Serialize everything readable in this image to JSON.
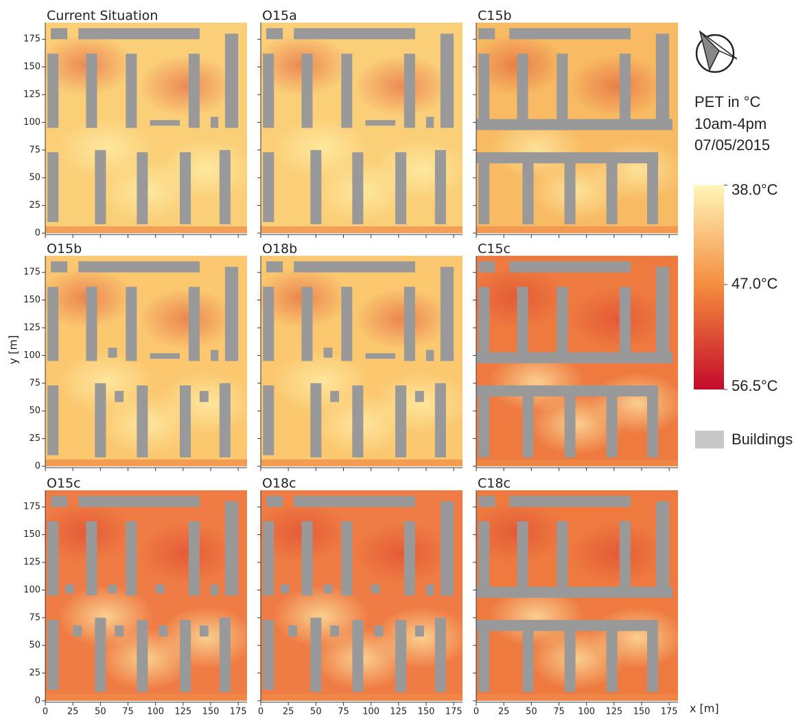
{
  "chart_data": [
    {
      "type": "heatmap",
      "title": "Current Situation",
      "color": "#fbcf78",
      "xlim": [
        0,
        183
      ],
      "ylim": [
        0,
        190
      ],
      "xticks": [
        0,
        25,
        50,
        75,
        100,
        125,
        150,
        175
      ],
      "yticks": [
        0,
        25,
        50,
        75,
        100,
        125,
        150,
        175
      ]
    },
    {
      "type": "heatmap",
      "title": "O15a",
      "color": "#fbcf78",
      "xlim": [
        0,
        183
      ],
      "ylim": [
        0,
        190
      ],
      "xticks": [
        0,
        25,
        50,
        75,
        100,
        125,
        150,
        175
      ],
      "yticks": [
        0,
        25,
        50,
        75,
        100,
        125,
        150,
        175
      ]
    },
    {
      "type": "heatmap",
      "title": "C15b",
      "color": "#f8ba62",
      "xlim": [
        0,
        183
      ],
      "ylim": [
        0,
        190
      ],
      "xticks": [
        0,
        25,
        50,
        75,
        100,
        125,
        150,
        175
      ],
      "yticks": [
        0,
        25,
        50,
        75,
        100,
        125,
        150,
        175
      ]
    },
    {
      "type": "heatmap",
      "title": "O15b",
      "color": "#fbc870",
      "xlim": [
        0,
        183
      ],
      "ylim": [
        0,
        190
      ],
      "xticks": [
        0,
        25,
        50,
        75,
        100,
        125,
        150,
        175
      ],
      "yticks": [
        0,
        25,
        50,
        75,
        100,
        125,
        150,
        175
      ]
    },
    {
      "type": "heatmap",
      "title": "O18b",
      "color": "#fbc870",
      "xlim": [
        0,
        183
      ],
      "ylim": [
        0,
        190
      ],
      "xticks": [
        0,
        25,
        50,
        75,
        100,
        125,
        150,
        175
      ],
      "yticks": [
        0,
        25,
        50,
        75,
        100,
        125,
        150,
        175
      ]
    },
    {
      "type": "heatmap",
      "title": "C15c",
      "color": "#ee7a40",
      "xlim": [
        0,
        183
      ],
      "ylim": [
        0,
        190
      ],
      "xticks": [
        0,
        25,
        50,
        75,
        100,
        125,
        150,
        175
      ],
      "yticks": [
        0,
        25,
        50,
        75,
        100,
        125,
        150,
        175
      ]
    },
    {
      "type": "heatmap",
      "title": "O15c",
      "color": "#ef7c44",
      "xlim": [
        0,
        183
      ],
      "ylim": [
        0,
        190
      ],
      "xticks": [
        0,
        25,
        50,
        75,
        100,
        125,
        150,
        175
      ],
      "yticks": [
        0,
        25,
        50,
        75,
        100,
        125,
        150,
        175
      ]
    },
    {
      "type": "heatmap",
      "title": "O18c",
      "color": "#ef7c44",
      "xlim": [
        0,
        183
      ],
      "ylim": [
        0,
        190
      ],
      "xticks": [
        0,
        25,
        50,
        75,
        100,
        125,
        150,
        175
      ],
      "yticks": [
        0,
        25,
        50,
        75,
        100,
        125,
        150,
        175
      ]
    },
    {
      "type": "heatmap",
      "title": "C18c",
      "color": "#ee7a40",
      "xlim": [
        0,
        183
      ],
      "ylim": [
        0,
        190
      ],
      "xticks": [
        0,
        25,
        50,
        75,
        100,
        125,
        150,
        175
      ],
      "yticks": [
        0,
        25,
        50,
        75,
        100,
        125,
        150,
        175
      ]
    }
  ],
  "xlabel": "x [m]",
  "ylabel": "y [m]",
  "legend": {
    "title": [
      "PET in °C",
      "10am-4pm",
      "07/05/2015"
    ],
    "colorbar": {
      "lim": [
        38,
        56.5
      ],
      "colors": [
        "#fff6b8",
        "#f48a3c",
        "#c40a2c"
      ],
      "ticks": [
        {
          "value": 38,
          "label": "38.0°C"
        },
        {
          "value": 47,
          "label": "47.0°C"
        },
        {
          "value": 56.5,
          "label": "56.5°C"
        }
      ]
    },
    "buildings": "Buildings",
    "buildings_color": "#c8c8c8"
  }
}
